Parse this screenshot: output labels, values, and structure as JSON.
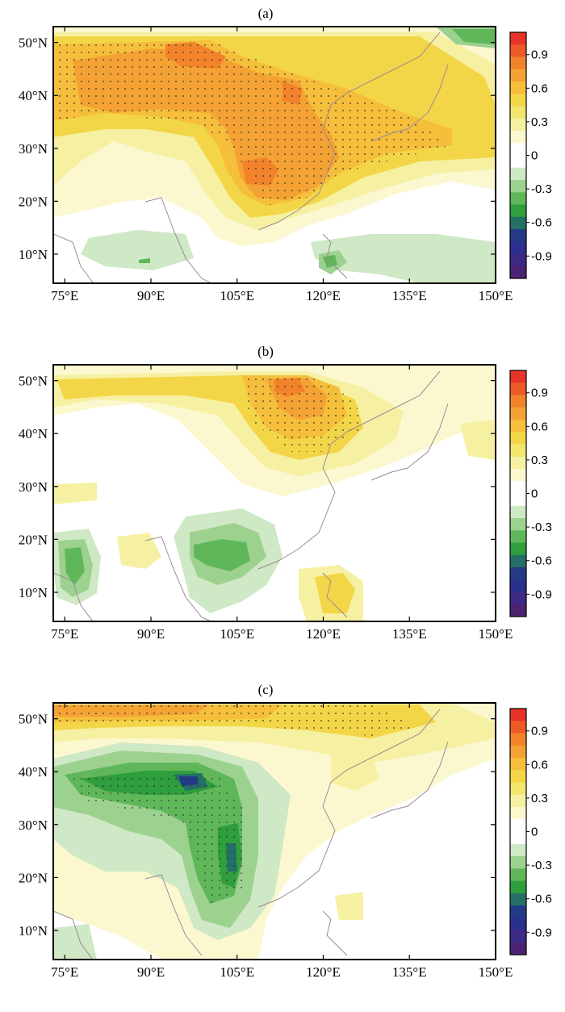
{
  "panels": [
    {
      "label": "(a)"
    },
    {
      "label": "(b)"
    },
    {
      "label": "(c)"
    }
  ],
  "lat_labels": [
    "50°N",
    "40°N",
    "30°N",
    "20°N",
    "10°N"
  ],
  "lat_values": [
    50,
    40,
    30,
    20,
    10
  ],
  "lon_labels": [
    "75°E",
    "90°E",
    "105°E",
    "120°E",
    "135°E",
    "150°E"
  ],
  "lon_values": [
    75,
    90,
    105,
    120,
    135,
    150
  ],
  "lat_range": [
    4.5,
    53
  ],
  "lon_range": [
    73,
    150
  ],
  "colorbar": {
    "tick_labels": [
      "0.9",
      "0.6",
      "0.3",
      "0",
      "-0.3",
      "-0.6",
      "-0.9"
    ],
    "tick_values": [
      0.9,
      0.6,
      0.3,
      0,
      -0.3,
      -0.6,
      -0.9
    ],
    "range": [
      -1.1,
      1.1
    ],
    "colors": [
      "#e8332a",
      "#ee5b28",
      "#f2832a",
      "#f4a233",
      "#f5be3b",
      "#f3d647",
      "#f2e66c",
      "#f6f0a2",
      "#fbf8d0",
      "#ffffff",
      "#ffffff",
      "#cfe8c5",
      "#9dd18f",
      "#5fb75a",
      "#2f9e3d",
      "#256f66",
      "#233b86",
      "#2b2f8e",
      "#3d2a85",
      "#4a2470"
    ]
  }
}
